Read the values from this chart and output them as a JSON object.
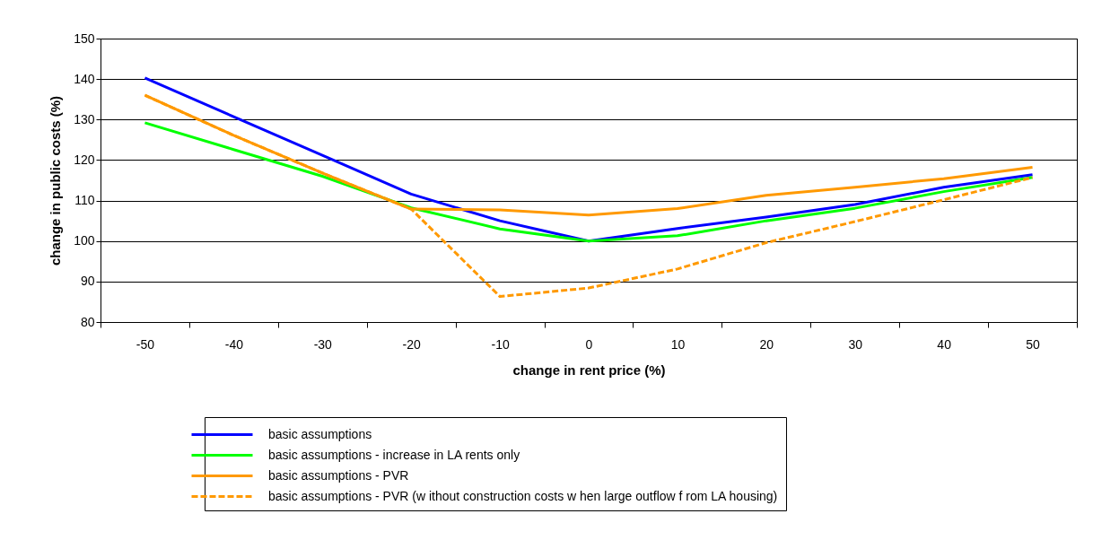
{
  "chart_data": {
    "type": "line",
    "xlabel": "change in rent price (%)",
    "ylabel": "change in public costs (%)",
    "categories": [
      "-50",
      "-40",
      "-30",
      "-20",
      "-10",
      "0",
      "10",
      "20",
      "30",
      "40",
      "50"
    ],
    "ylim": [
      80,
      150
    ],
    "yticks": [
      80,
      90,
      100,
      110,
      120,
      130,
      140,
      150
    ],
    "grid": "y",
    "legend": "bottom",
    "marker": "none",
    "series": [
      {
        "name": "basic assumptions",
        "color": "#0000ff",
        "values": [
          140.3,
          130.7,
          121.2,
          111.6,
          105,
          100,
          103.1,
          105.9,
          109,
          113.3,
          116.4
        ]
      },
      {
        "name": "basic assumptions - increase in LA rents only",
        "color": "#00ff00",
        "values": [
          129.2,
          122.6,
          116,
          108.2,
          103,
          100,
          101.3,
          105,
          108.1,
          112.2,
          115.7
        ]
      },
      {
        "name": "basic assumptions - PVR",
        "color": "#ff9900",
        "values": [
          136,
          126.1,
          116.8,
          107.9,
          107.7,
          106.4,
          108,
          111.3,
          113.3,
          115.4,
          118.2
        ]
      },
      {
        "name": "basic assumptions - PVR (w ithout construction costs w hen large outflow f rom LA housing)",
        "color": "#ff9900",
        "line_style": "dashed",
        "values": [
          136,
          126.1,
          116.8,
          107.9,
          86.3,
          88.4,
          93.1,
          99.6,
          104.8,
          110.2,
          115.7
        ]
      }
    ]
  }
}
